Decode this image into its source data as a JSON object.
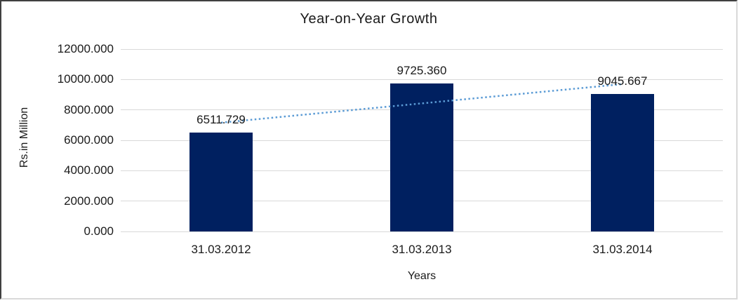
{
  "chart_data": {
    "type": "bar",
    "title": "Year-on-Year Growth",
    "xlabel": "Years",
    "ylabel": "Rs.in Million",
    "categories": [
      "31.03.2012",
      "31.03.2013",
      "31.03.2014"
    ],
    "values": [
      6511.729,
      9725.36,
      9045.667
    ],
    "data_labels": [
      "6511.729",
      "9725.360",
      "9045.667"
    ],
    "ylim": [
      0,
      12000
    ],
    "ytick_step": 2000,
    "ytick_labels": [
      "0.000",
      "2000.000",
      "4000.000",
      "6000.000",
      "8000.000",
      "10000.000",
      "12000.000"
    ],
    "grid": true,
    "legend": "none",
    "bar_color": "#002060",
    "gridline_color": "#d9d9d9",
    "text_color": "#1a1a1a",
    "trendline": {
      "type": "linear",
      "style": "dotted",
      "color": "#5b9bd5",
      "start_value": 7160,
      "end_value": 9695
    }
  },
  "frame": {
    "border_dark": "#404040",
    "border_light": "#d9d9d9",
    "background": "#ffffff"
  }
}
